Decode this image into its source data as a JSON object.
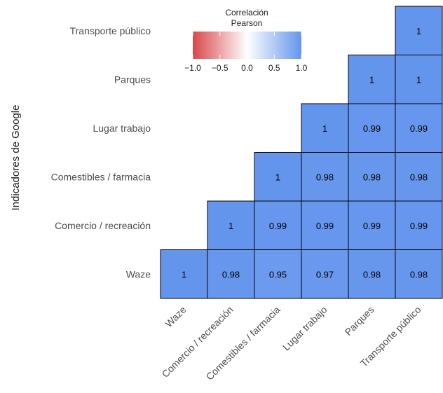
{
  "chart_data": {
    "type": "heatmap",
    "title": "",
    "ylabel": "Indicadores de Google",
    "xlabel": "",
    "x_categories": [
      "Waze",
      "Comercio / recreación",
      "Comestibles / farmacia",
      "Lugar trabajo",
      "Parques",
      "Transporte público"
    ],
    "y_categories": [
      "Waze",
      "Comercio / recreación",
      "Comestibles / farmacia",
      "Lugar trabajo",
      "Parques",
      "Transporte público"
    ],
    "cells": [
      {
        "x": "Waze",
        "y": "Waze",
        "value": 1,
        "label": "1"
      },
      {
        "x": "Comercio / recreación",
        "y": "Waze",
        "value": 0.98,
        "label": "0.98"
      },
      {
        "x": "Comestibles / farmacia",
        "y": "Waze",
        "value": 0.95,
        "label": "0.95"
      },
      {
        "x": "Lugar trabajo",
        "y": "Waze",
        "value": 0.97,
        "label": "0.97"
      },
      {
        "x": "Parques",
        "y": "Waze",
        "value": 0.98,
        "label": "0.98"
      },
      {
        "x": "Transporte público",
        "y": "Waze",
        "value": 0.98,
        "label": "0.98"
      },
      {
        "x": "Comercio / recreación",
        "y": "Comercio / recreación",
        "value": 1,
        "label": "1"
      },
      {
        "x": "Comestibles / farmacia",
        "y": "Comercio / recreación",
        "value": 0.99,
        "label": "0.99"
      },
      {
        "x": "Lugar trabajo",
        "y": "Comercio / recreación",
        "value": 0.99,
        "label": "0.99"
      },
      {
        "x": "Parques",
        "y": "Comercio / recreación",
        "value": 0.99,
        "label": "0.99"
      },
      {
        "x": "Transporte público",
        "y": "Comercio / recreación",
        "value": 0.99,
        "label": "0.99"
      },
      {
        "x": "Comestibles / farmacia",
        "y": "Comestibles / farmacia",
        "value": 1,
        "label": "1"
      },
      {
        "x": "Lugar trabajo",
        "y": "Comestibles / farmacia",
        "value": 0.98,
        "label": "0.98"
      },
      {
        "x": "Parques",
        "y": "Comestibles / farmacia",
        "value": 0.98,
        "label": "0.98"
      },
      {
        "x": "Transporte público",
        "y": "Comestibles / farmacia",
        "value": 0.98,
        "label": "0.98"
      },
      {
        "x": "Lugar trabajo",
        "y": "Lugar trabajo",
        "value": 1,
        "label": "1"
      },
      {
        "x": "Parques",
        "y": "Lugar trabajo",
        "value": 0.99,
        "label": "0.99"
      },
      {
        "x": "Transporte público",
        "y": "Lugar trabajo",
        "value": 0.99,
        "label": "0.99"
      },
      {
        "x": "Parques",
        "y": "Parques",
        "value": 1,
        "label": "1"
      },
      {
        "x": "Transporte público",
        "y": "Parques",
        "value": 1,
        "label": "1"
      },
      {
        "x": "Transporte público",
        "y": "Transporte público",
        "value": 1,
        "label": "1"
      }
    ],
    "legend": {
      "title_lines": [
        "Correlación",
        "Pearson"
      ],
      "range": [
        -1,
        1
      ],
      "ticks": [
        -1,
        -0.5,
        0,
        0.5,
        1
      ],
      "tick_labels": [
        "−1.0",
        "−0.5",
        "0.0",
        "0.5",
        "1.0"
      ],
      "colors": {
        "low": "#d7474a",
        "mid": "#ffffff",
        "high": "#6495ed"
      },
      "placement": "top-left"
    },
    "cell_border_color": "#000000",
    "grid": false
  }
}
